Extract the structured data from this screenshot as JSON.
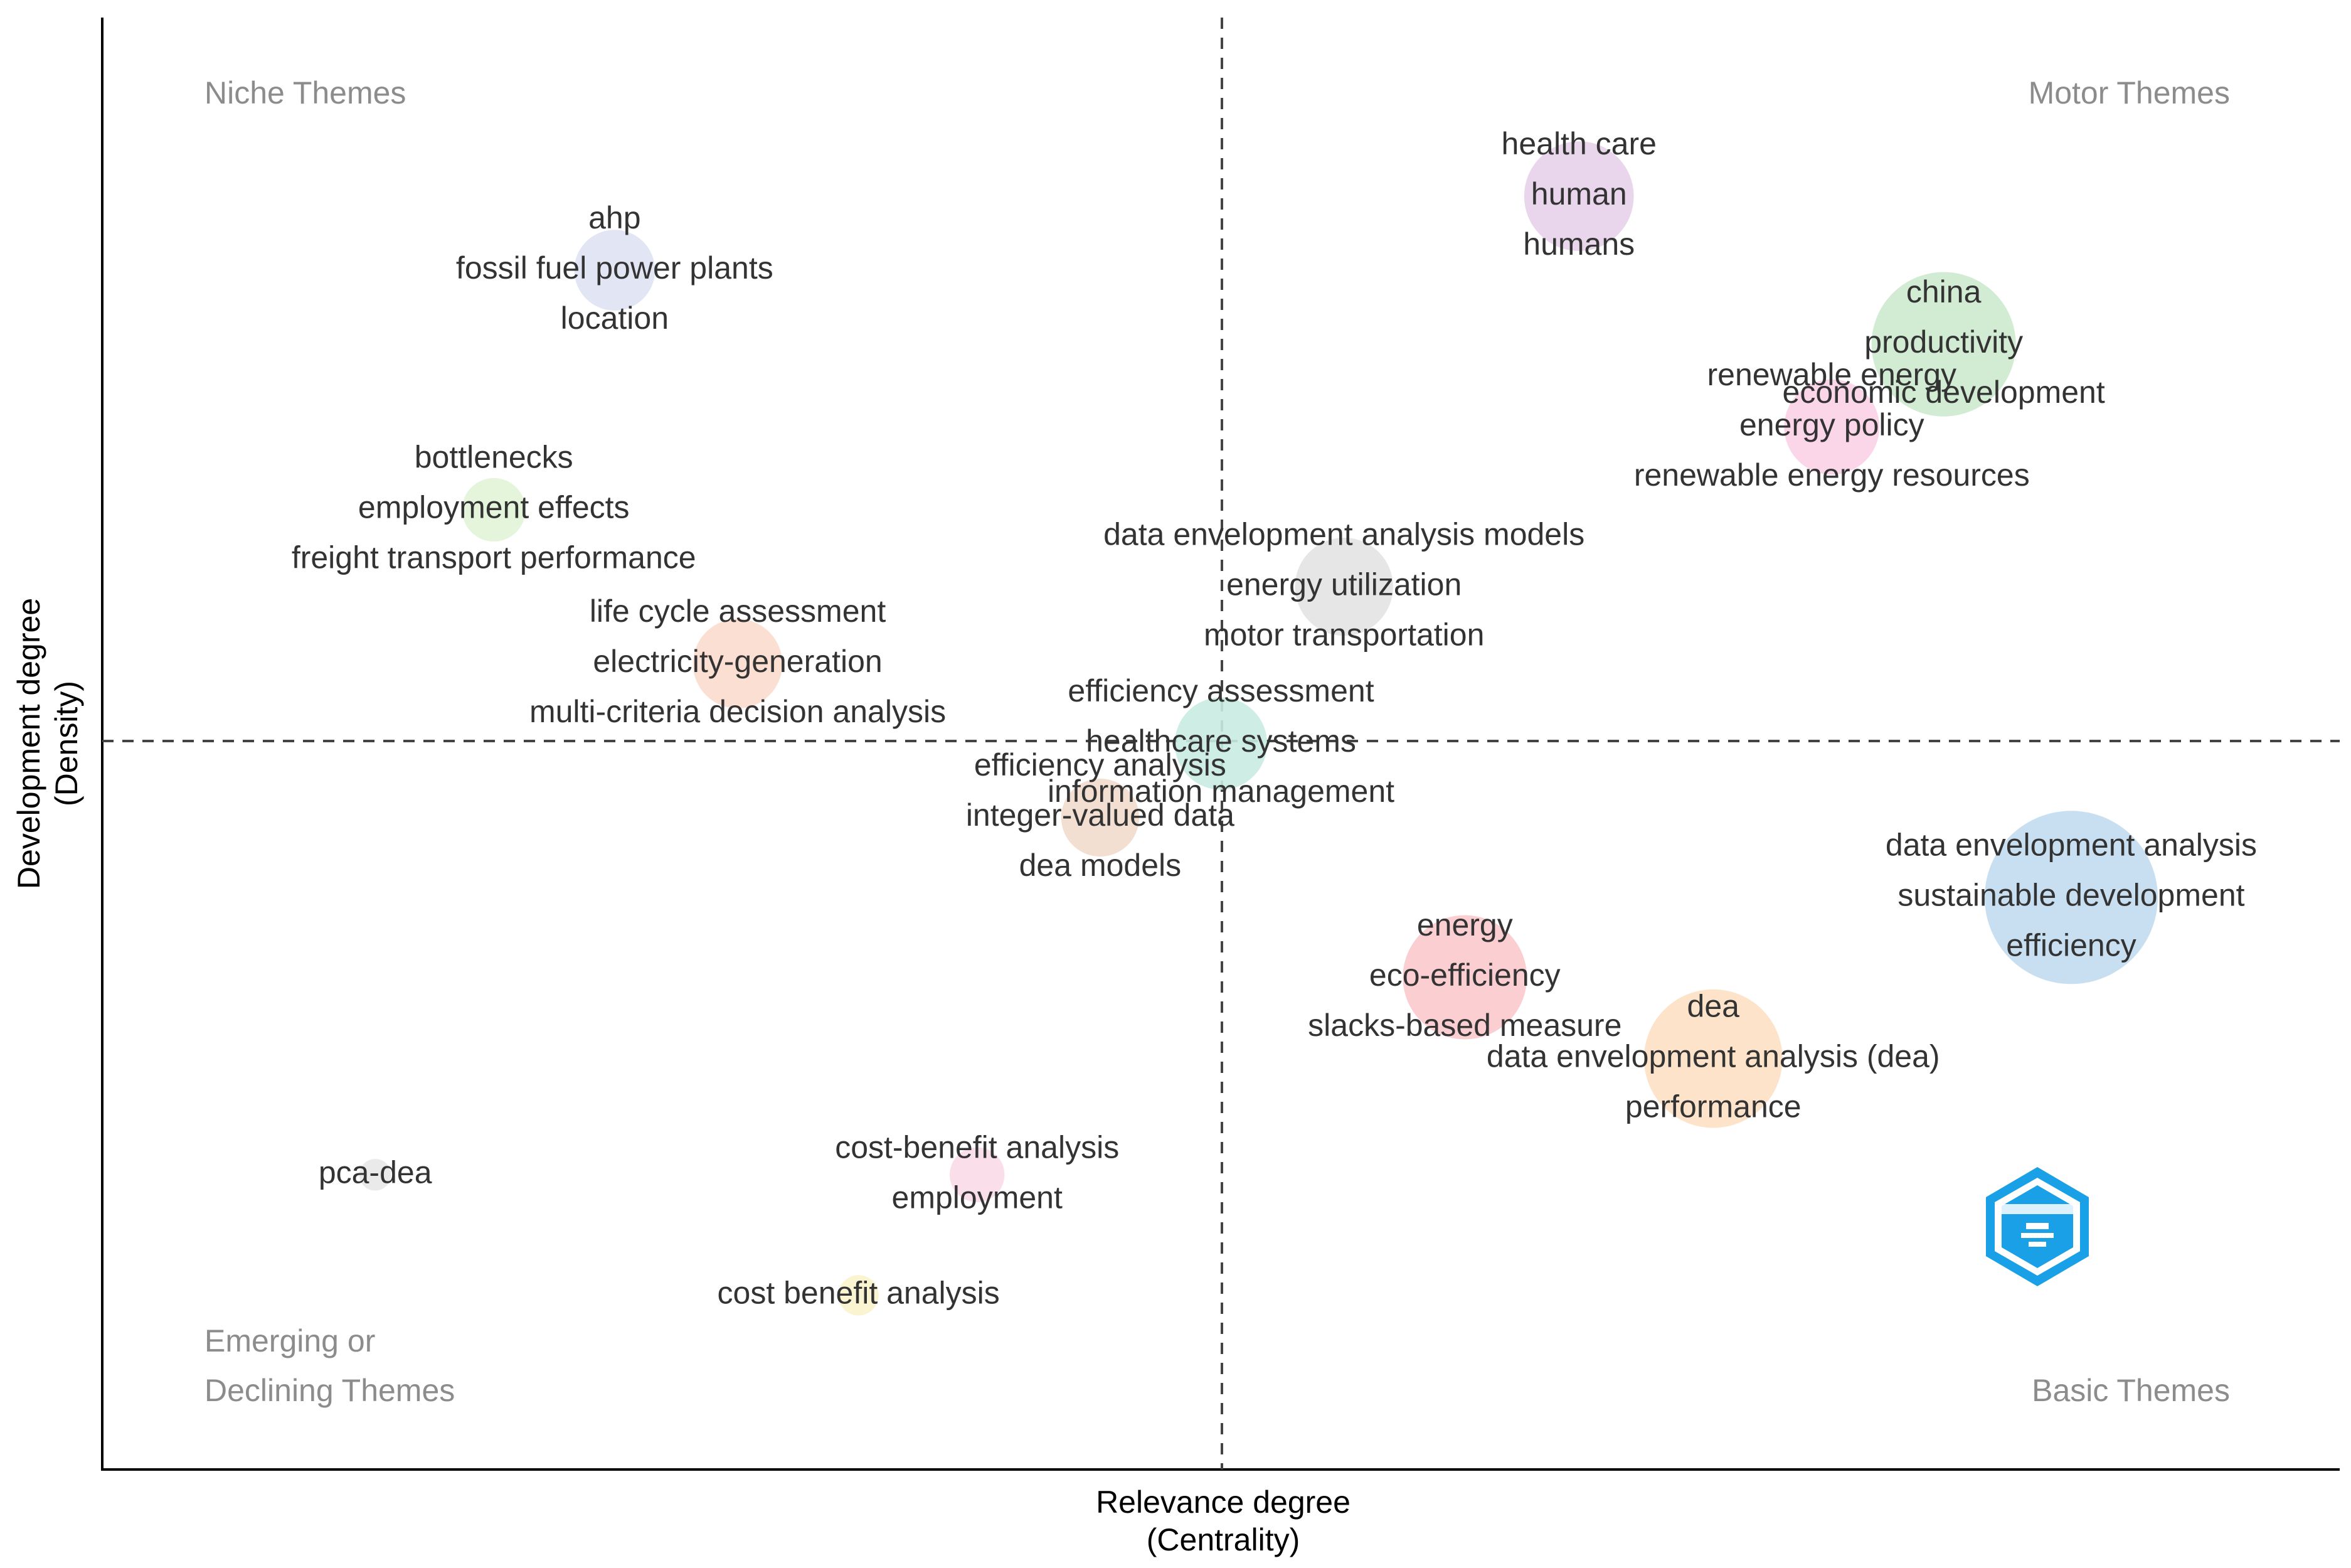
{
  "chart_data": {
    "type": "scatter",
    "title": "",
    "xlabel": [
      "Relevance degree",
      "(Centrality)"
    ],
    "ylabel": [
      "Development degree",
      "(Density)"
    ],
    "xlim": [
      0,
      1000
    ],
    "ylim": [
      0,
      1000
    ],
    "divider": {
      "x": 500,
      "y": 500
    },
    "grid": false,
    "quadrants": {
      "niche": [
        "Niche Themes"
      ],
      "motor": [
        "Motor Themes"
      ],
      "emerging": [
        "Emerging or",
        "Declining Themes"
      ],
      "basic": [
        "Basic Themes"
      ]
    },
    "clusters": [
      {
        "labels": [
          "ahp",
          "fossil fuel power plants",
          "location"
        ],
        "x": 229,
        "y": 826,
        "size": 28,
        "color": "#dfe3f3"
      },
      {
        "labels": [
          "bottlenecks",
          "employment effects",
          "freight transport performance"
        ],
        "x": 175,
        "y": 661,
        "size": 22,
        "color": "#e2f4d7"
      },
      {
        "labels": [
          "life cycle assessment",
          "electricity-generation",
          "multi-criteria decision analysis"
        ],
        "x": 284,
        "y": 555,
        "size": 31,
        "color": "#fbdccd"
      },
      {
        "labels": [
          "health care",
          "human",
          "humans"
        ],
        "x": 660,
        "y": 877,
        "size": 38,
        "color": "#e8d1ea"
      },
      {
        "labels": [
          "china",
          "productivity",
          "economic development"
        ],
        "x": 823,
        "y": 775,
        "size": 50,
        "color": "#cdeacf"
      },
      {
        "labels": [
          "renewable energy",
          "energy policy",
          "renewable energy resources"
        ],
        "x": 773,
        "y": 718,
        "size": 33,
        "color": "#f9d2e6"
      },
      {
        "labels": [
          "data envelopment analysis models",
          "energy utilization",
          "motor transportation"
        ],
        "x": 555,
        "y": 608,
        "size": 34,
        "color": "#e3e3e3"
      },
      {
        "labels": [
          "efficiency assessment",
          "healthcare systems",
          "information management"
        ],
        "x": 500,
        "y": 500,
        "size": 32,
        "color": "#c9ebe1"
      },
      {
        "labels": [
          "efficiency analysis",
          "integer-valued data",
          "dea models"
        ],
        "x": 446,
        "y": 449,
        "size": 27,
        "color": "#f1dccd"
      },
      {
        "labels": [
          "data envelopment analysis",
          "sustainable development",
          "efficiency"
        ],
        "x": 880,
        "y": 394,
        "size": 60,
        "color": "#c2dcef"
      },
      {
        "labels": [
          "energy",
          "eco-efficiency",
          "slacks-based measure"
        ],
        "x": 609,
        "y": 339,
        "size": 43,
        "color": "#fbc9cd"
      },
      {
        "labels": [
          "dea",
          "data envelopment analysis (dea)",
          "performance"
        ],
        "x": 720,
        "y": 283,
        "size": 48,
        "color": "#fde0c4"
      },
      {
        "labels": [
          "cost-benefit analysis",
          "employment"
        ],
        "x": 391,
        "y": 203,
        "size": 19,
        "color": "#f9dbe9"
      },
      {
        "labels": [
          "pca-dea"
        ],
        "x": 122,
        "y": 203,
        "size": 11,
        "color": "#e8e8e8"
      },
      {
        "labels": [
          "cost benefit analysis"
        ],
        "x": 338,
        "y": 120,
        "size": 14,
        "color": "#fbf3cc"
      }
    ]
  },
  "logo": {
    "name": "bibliometrix-logo",
    "color": "#1aa0e6"
  }
}
